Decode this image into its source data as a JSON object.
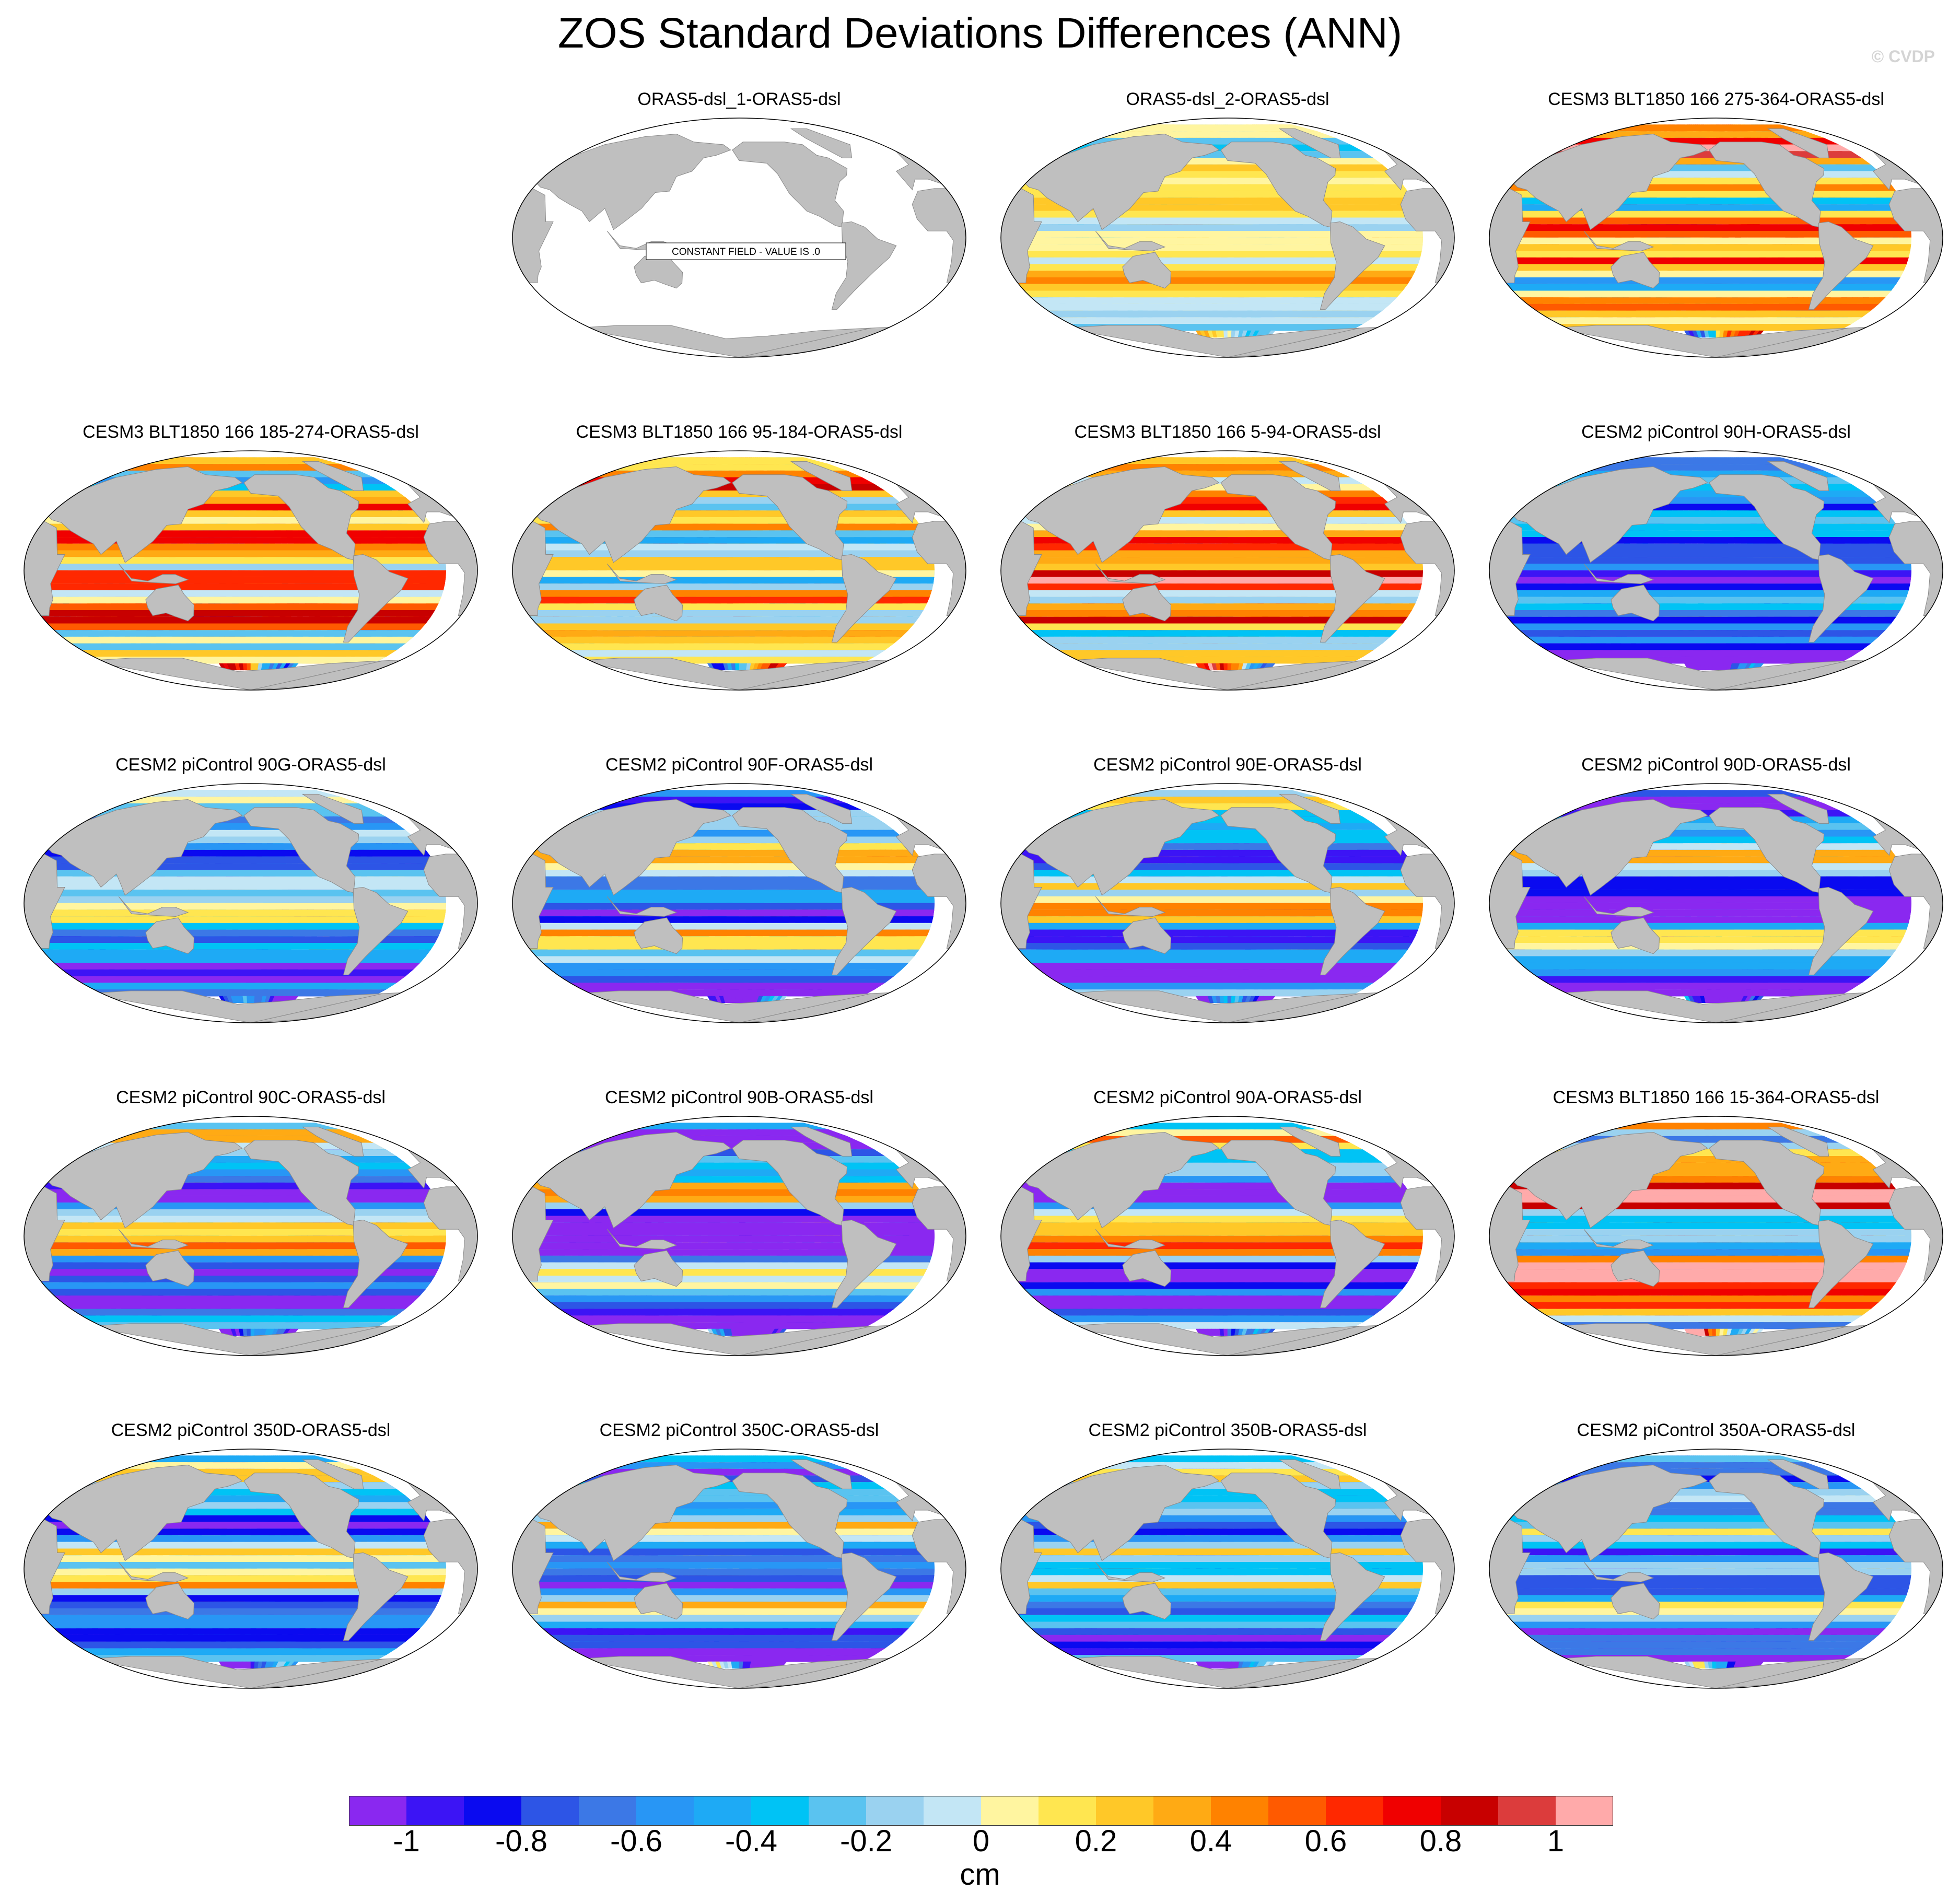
{
  "figure": {
    "title": "ZOS Standard Deviations Differences (ANN)",
    "watermark": "© CVDP"
  },
  "colors": {
    "land": "#bfbfbf",
    "coast": "#8a8a8a",
    "ocean_blank": "#ffffff",
    "palette": [
      "#8a28f0",
      "#3c14f5",
      "#0a0af0",
      "#2d55e6",
      "#3c78e6",
      "#2896f5",
      "#1eaaf5",
      "#00c3f5",
      "#5ac3f0",
      "#9ad2f0",
      "#c3e6f5",
      "#fff5a0",
      "#ffe650",
      "#ffc828",
      "#ffaa14",
      "#ff8200",
      "#ff5a00",
      "#ff2800",
      "#f00000",
      "#c80000",
      "#dc3c3c",
      "#ffaaaa"
    ]
  },
  "colorbar": {
    "tick_labels": [
      "-1",
      "-0.8",
      "-0.6",
      "-0.4",
      "-0.2",
      "0",
      "0.2",
      "0.4",
      "0.6",
      "0.8",
      "1"
    ],
    "unit": "cm"
  },
  "panels": [
    {
      "title": "ORAS5-dsl_1-ORAS5-dsl",
      "note": "CONSTANT FIELD - VALUE IS .0",
      "constant": true,
      "bias": 0,
      "amp": 0
    },
    {
      "title": "ORAS5-dsl_2-ORAS5-dsl",
      "constant": false,
      "bias": 0.05,
      "amp": 0.45
    },
    {
      "title": "CESM3 BLT1850 166 275-364-ORAS5-dsl",
      "constant": false,
      "bias": 0.35,
      "amp": 1.2
    },
    {
      "title": "CESM3 BLT1850 166 185-274-ORAS5-dsl",
      "constant": false,
      "bias": 0.2,
      "amp": 1.2
    },
    {
      "title": "CESM3 BLT1850 166 95-184-ORAS5-dsl",
      "constant": false,
      "bias": 0.25,
      "amp": 1.2
    },
    {
      "title": "CESM3 BLT1850 166 5-94-ORAS5-dsl",
      "constant": false,
      "bias": 0.3,
      "amp": 1.2
    },
    {
      "title": "CESM2 piControl 90H-ORAS5-dsl",
      "constant": false,
      "bias": -0.45,
      "amp": 0.9
    },
    {
      "title": "CESM2 piControl 90G-ORAS5-dsl",
      "constant": false,
      "bias": -0.4,
      "amp": 1.0
    },
    {
      "title": "CESM2 piControl 90F-ORAS5-dsl",
      "constant": false,
      "bias": -0.2,
      "amp": 1.1
    },
    {
      "title": "CESM2 piControl 90E-ORAS5-dsl",
      "constant": false,
      "bias": -0.4,
      "amp": 1.0
    },
    {
      "title": "CESM2 piControl 90D-ORAS5-dsl",
      "constant": false,
      "bias": -0.4,
      "amp": 1.0
    },
    {
      "title": "CESM2 piControl 90C-ORAS5-dsl",
      "constant": false,
      "bias": -0.45,
      "amp": 1.0
    },
    {
      "title": "CESM2 piControl 90B-ORAS5-dsl",
      "constant": false,
      "bias": -0.4,
      "amp": 1.0
    },
    {
      "title": "CESM2 piControl 90A-ORAS5-dsl",
      "constant": false,
      "bias": -0.4,
      "amp": 1.0
    },
    {
      "title": "CESM3 BLT1850 166 15-364-ORAS5-dsl",
      "constant": false,
      "bias": 0.45,
      "amp": 1.2
    },
    {
      "title": "CESM2 piControl 350D-ORAS5-dsl",
      "constant": false,
      "bias": -0.35,
      "amp": 1.0
    },
    {
      "title": "CESM2 piControl 350C-ORAS5-dsl",
      "constant": false,
      "bias": -0.35,
      "amp": 1.0
    },
    {
      "title": "CESM2 piControl 350B-ORAS5-dsl",
      "constant": false,
      "bias": -0.35,
      "amp": 1.0
    },
    {
      "title": "CESM2 piControl 350A-ORAS5-dsl",
      "constant": false,
      "bias": -0.35,
      "amp": 1.0
    }
  ]
}
